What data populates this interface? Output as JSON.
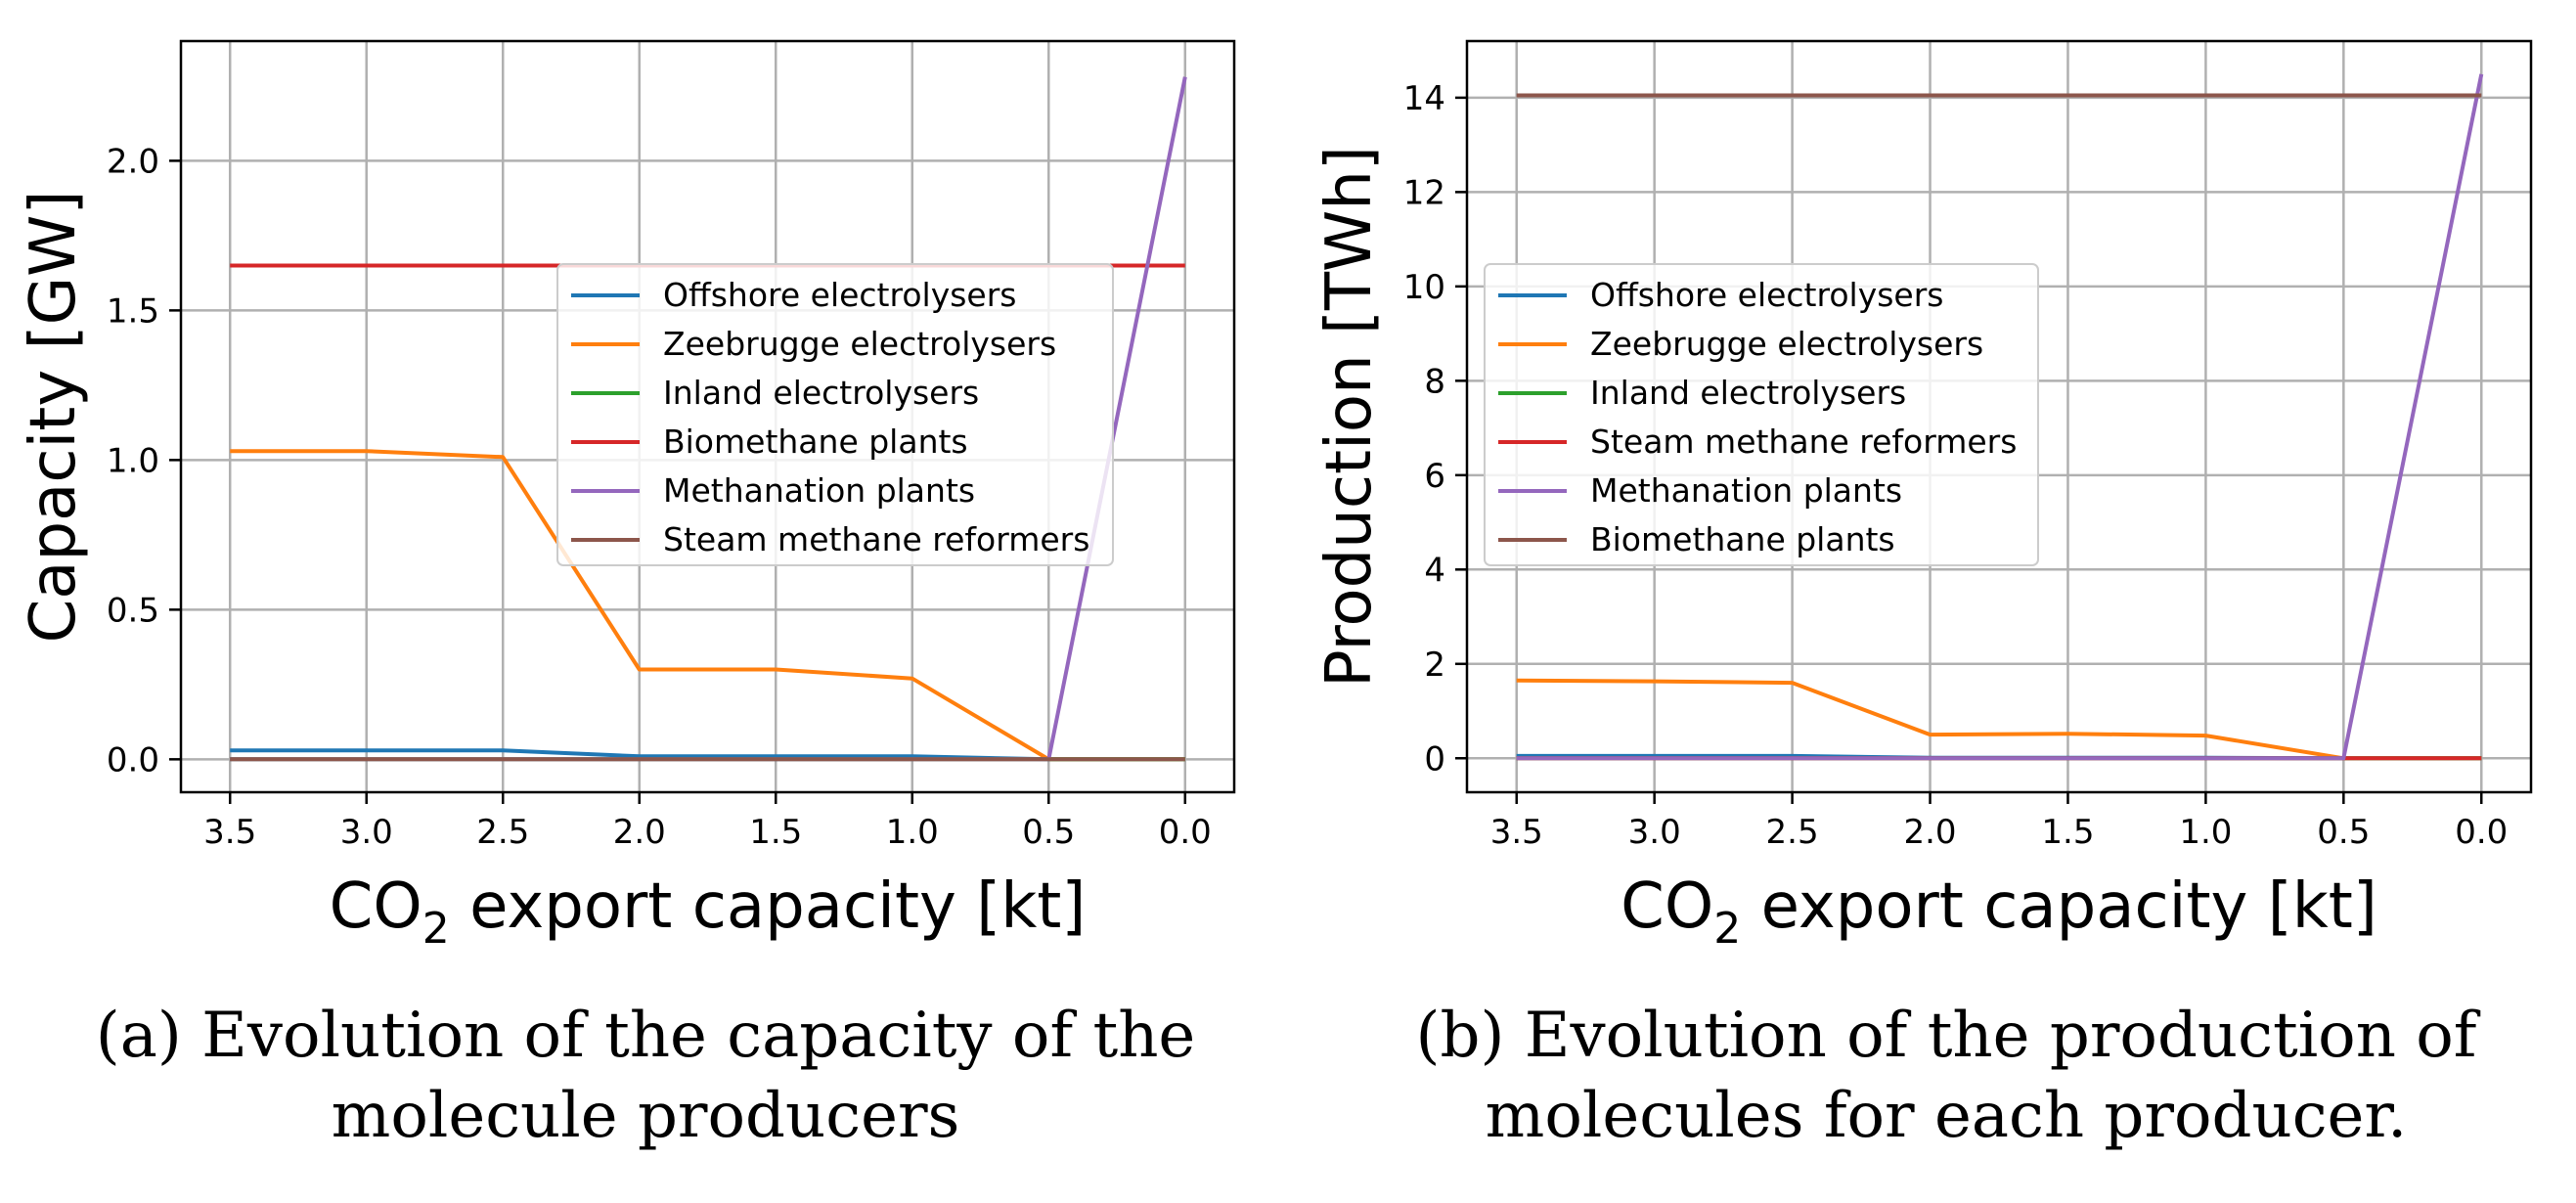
{
  "chart_data": [
    {
      "type": "line",
      "xlabel": "CO2 export capacity [kt]",
      "xlabel_main": "CO",
      "xlabel_sub": "2",
      "xlabel_rest": " export capacity [kt]",
      "ylabel": "Capacity [GW]",
      "x": [
        3.5,
        3.0,
        2.5,
        2.0,
        1.5,
        1.0,
        0.5,
        0.0
      ],
      "x_tick_labels": [
        "3.5",
        "3.0",
        "2.5",
        "2.0",
        "1.5",
        "1.0",
        "0.5",
        "0.0"
      ],
      "x_reversed": true,
      "xlim": [
        3.68,
        -0.18
      ],
      "ylim": [
        -0.11,
        2.4
      ],
      "y_ticks": [
        0.0,
        0.5,
        1.0,
        1.5,
        2.0
      ],
      "y_tick_labels": [
        "0.0",
        "0.5",
        "1.0",
        "1.5",
        "2.0"
      ],
      "grid": true,
      "legend_position": "center-right",
      "series": [
        {
          "name": "Offshore electrolysers",
          "color": "#1f77b4",
          "values": [
            0.03,
            0.03,
            0.03,
            0.01,
            0.01,
            0.01,
            0.0,
            0.0
          ]
        },
        {
          "name": "Zeebrugge electrolysers",
          "color": "#ff7f0e",
          "values": [
            1.03,
            1.03,
            1.01,
            0.3,
            0.3,
            0.27,
            0.0,
            0.0
          ]
        },
        {
          "name": "Inland electrolysers",
          "color": "#2ca02c",
          "values": [
            0.0,
            0.0,
            0.0,
            0.0,
            0.0,
            0.0,
            0.0,
            0.0
          ]
        },
        {
          "name": "Biomethane plants",
          "color": "#d62728",
          "values": [
            1.65,
            1.65,
            1.65,
            1.65,
            1.65,
            1.65,
            1.65,
            1.65
          ]
        },
        {
          "name": "Methanation plants",
          "color": "#9467bd",
          "values": [
            0.0,
            0.0,
            0.0,
            0.0,
            0.0,
            0.0,
            0.0,
            2.28
          ]
        },
        {
          "name": "Steam methane reformers",
          "color": "#8c564b",
          "values": [
            0.0,
            0.0,
            0.0,
            0.0,
            0.0,
            0.0,
            0.0,
            0.0
          ]
        }
      ]
    },
    {
      "type": "line",
      "xlabel": "CO2 export capacity [kt]",
      "xlabel_main": "CO",
      "xlabel_sub": "2",
      "xlabel_rest": " export capacity [kt]",
      "ylabel": "Production [TWh]",
      "x": [
        3.5,
        3.0,
        2.5,
        2.0,
        1.5,
        1.0,
        0.5,
        0.0
      ],
      "x_tick_labels": [
        "3.5",
        "3.0",
        "2.5",
        "2.0",
        "1.5",
        "1.0",
        "0.5",
        "0.0"
      ],
      "x_reversed": true,
      "xlim": [
        3.68,
        -0.18
      ],
      "ylim": [
        -0.72,
        15.2
      ],
      "y_ticks": [
        0,
        2,
        4,
        6,
        8,
        10,
        12,
        14
      ],
      "y_tick_labels": [
        "0",
        "2",
        "4",
        "6",
        "8",
        "10",
        "12",
        "14"
      ],
      "grid": true,
      "legend_position": "center-left",
      "series": [
        {
          "name": "Offshore electrolysers",
          "color": "#1f77b4",
          "values": [
            0.05,
            0.05,
            0.05,
            0.01,
            0.01,
            0.01,
            0.0,
            0.0
          ]
        },
        {
          "name": "Zeebrugge electrolysers",
          "color": "#ff7f0e",
          "values": [
            1.65,
            1.63,
            1.6,
            0.5,
            0.52,
            0.48,
            0.0,
            0.0
          ]
        },
        {
          "name": "Inland electrolysers",
          "color": "#2ca02c",
          "values": [
            0.0,
            0.0,
            0.0,
            0.0,
            0.0,
            0.0,
            0.0,
            0.0
          ]
        },
        {
          "name": "Steam methane reformers",
          "color": "#d62728",
          "values": [
            0.0,
            0.0,
            0.0,
            0.0,
            0.0,
            0.0,
            0.0,
            0.0
          ]
        },
        {
          "name": "Methanation plants",
          "color": "#9467bd",
          "values": [
            0.0,
            0.0,
            0.0,
            0.0,
            0.0,
            0.0,
            0.0,
            14.5
          ]
        },
        {
          "name": "Biomethane plants",
          "color": "#8c564b",
          "values": [
            14.05,
            14.05,
            14.05,
            14.05,
            14.05,
            14.05,
            14.05,
            14.05
          ]
        }
      ]
    }
  ],
  "captions": {
    "a_line1": "(a) Evolution of the capacity of the",
    "a_line2": "molecule producers",
    "b_line1": "(b) Evolution of the production of",
    "b_line2": "molecules for each producer."
  }
}
